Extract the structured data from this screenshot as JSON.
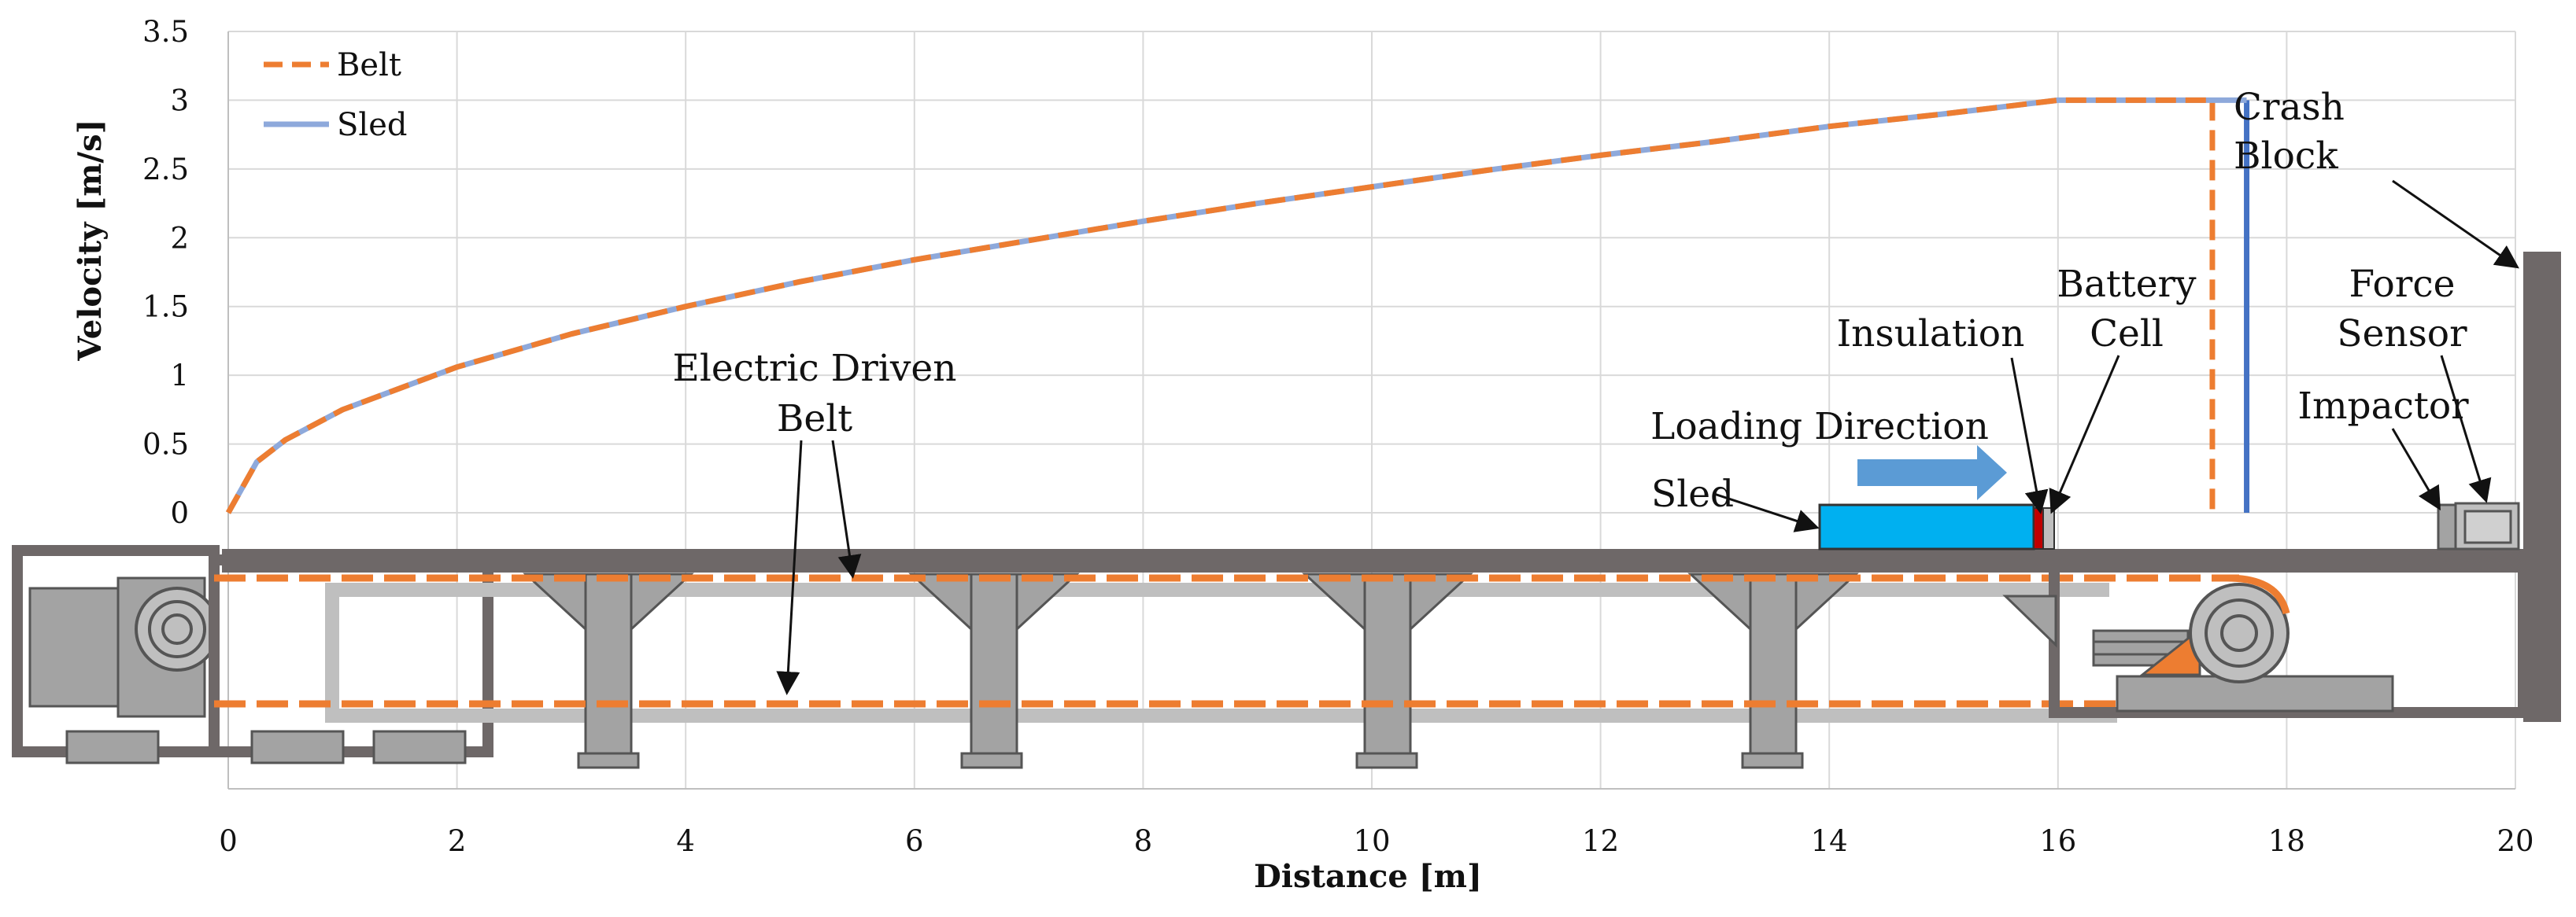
{
  "chart_data": {
    "type": "line",
    "xlabel": "Distance [m]",
    "ylabel": "Velocity [m/s]",
    "xlim": [
      0,
      20
    ],
    "ylim": [
      0,
      3.5
    ],
    "x_ticks": [
      "0",
      "2",
      "4",
      "6",
      "8",
      "10",
      "12",
      "14",
      "16",
      "18",
      "20"
    ],
    "y_ticks": [
      "3.5",
      "3",
      "2.5",
      "2",
      "1.5",
      "1",
      "0.5",
      "0"
    ],
    "grid": true,
    "legend_position": "top-left",
    "series": [
      {
        "name": "Belt",
        "color": "#ED7D31",
        "style": "dashed",
        "x": [
          0,
          0.25,
          0.5,
          1,
          2,
          3,
          4,
          5,
          6,
          7,
          8,
          9,
          10,
          11,
          12,
          13,
          14,
          15,
          16,
          17.35,
          17.35
        ],
        "y": [
          0,
          0.37,
          0.53,
          0.75,
          1.06,
          1.3,
          1.5,
          1.68,
          1.84,
          1.98,
          2.12,
          2.25,
          2.37,
          2.49,
          2.6,
          2.7,
          2.81,
          2.9,
          3.0,
          3.0,
          0
        ]
      },
      {
        "name": "Sled",
        "color": "#8EA9DB",
        "style": "solid",
        "x": [
          0,
          0.25,
          0.5,
          1,
          2,
          3,
          4,
          5,
          6,
          7,
          8,
          9,
          10,
          11,
          12,
          13,
          14,
          15,
          16,
          17.65,
          17.65
        ],
        "y": [
          0,
          0.37,
          0.53,
          0.75,
          1.06,
          1.3,
          1.5,
          1.68,
          1.84,
          1.98,
          2.12,
          2.25,
          2.37,
          2.49,
          2.6,
          2.7,
          2.81,
          2.9,
          3.0,
          3.0,
          0
        ]
      }
    ]
  },
  "annotations": {
    "crash_block": [
      "Crash",
      "Block"
    ],
    "battery_cell": [
      "Battery",
      "Cell"
    ],
    "insulation": "Insulation",
    "force_sensor": [
      "Force",
      "Sensor"
    ],
    "impactor": "Impactor",
    "loading_direction": "Loading Direction",
    "sled": "Sled",
    "electric_belt": [
      "Electric Driven",
      "Belt"
    ]
  },
  "colors": {
    "frame": "#6E6868",
    "support": "#A3A3A3",
    "belt_gray": "#BFBFBF",
    "belt_orange": "#ED7D31",
    "sled_block": "#00B0F0",
    "arrow": "#5B9BD5",
    "sled_drop_line": "#4472C4",
    "insulation": "#C00000"
  }
}
